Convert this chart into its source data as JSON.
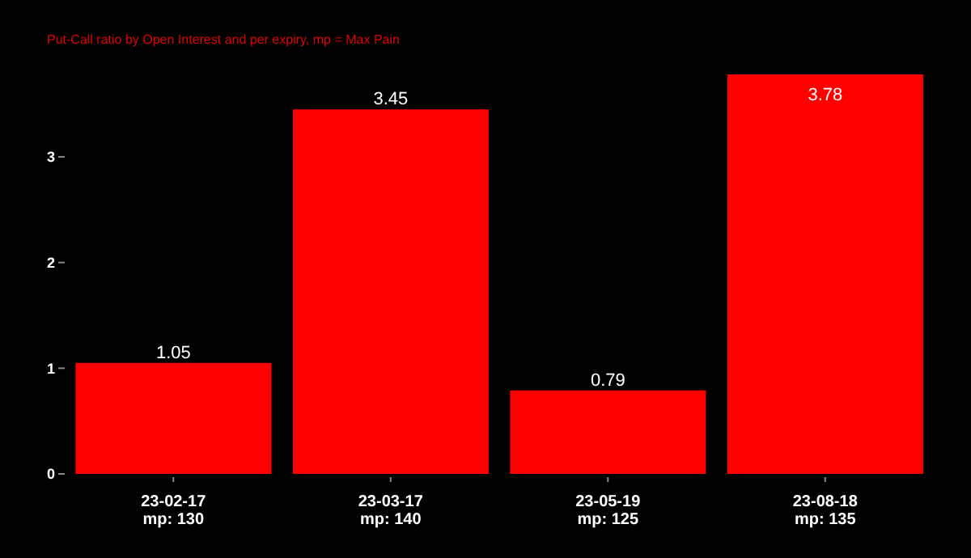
{
  "chart_data": {
    "type": "bar",
    "subtitle": "Put-Call ratio by Open Interest and per expiry, mp = Max Pain",
    "categories": [
      "23-02-17\nmp: 130",
      "23-03-17\nmp: 140",
      "23-05-19\nmp: 125",
      "23-08-18\nmp: 135"
    ],
    "values": [
      1.05,
      3.45,
      0.79,
      3.78
    ],
    "color": "#ff0000",
    "ylim": [
      0,
      3.78
    ],
    "yticks": [
      0,
      1,
      2,
      3
    ],
    "data_labels": true,
    "grid": false,
    "legend": false
  }
}
